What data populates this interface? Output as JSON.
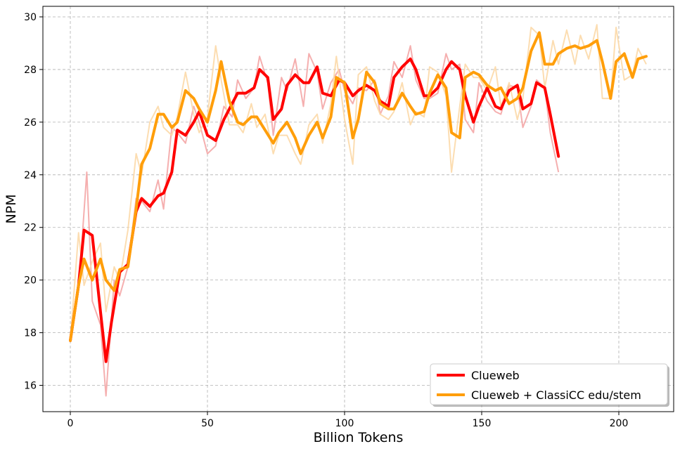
{
  "chart_data": {
    "type": "line",
    "xlabel": "Billion Tokens",
    "ylabel": "NPM",
    "xlim": [
      -10,
      220
    ],
    "ylim": [
      15,
      30.4
    ],
    "x_ticks": [
      0,
      50,
      100,
      150,
      200
    ],
    "y_ticks": [
      16,
      18,
      20,
      22,
      24,
      26,
      28,
      30
    ],
    "grid": true,
    "legend_position": "lower-right",
    "series": [
      {
        "name": "Clueweb",
        "color": "#ff0000",
        "raw_color": "#f4a6a6",
        "smoothed": [
          [
            0,
            17.7
          ],
          [
            3,
            19.8
          ],
          [
            5,
            21.9
          ],
          [
            8,
            21.7
          ],
          [
            11,
            18.8
          ],
          [
            13,
            16.9
          ],
          [
            15,
            18.4
          ],
          [
            18,
            20.3
          ],
          [
            21,
            20.6
          ],
          [
            24,
            22.6
          ],
          [
            26,
            23.1
          ],
          [
            29,
            22.8
          ],
          [
            32,
            23.2
          ],
          [
            34,
            23.3
          ],
          [
            37,
            24.1
          ],
          [
            39,
            25.7
          ],
          [
            42,
            25.5
          ],
          [
            45,
            26.0
          ],
          [
            47,
            26.4
          ],
          [
            50,
            25.5
          ],
          [
            53,
            25.3
          ],
          [
            56,
            26.1
          ],
          [
            59,
            26.7
          ],
          [
            61,
            27.1
          ],
          [
            64,
            27.1
          ],
          [
            67,
            27.3
          ],
          [
            69,
            28.0
          ],
          [
            72,
            27.7
          ],
          [
            74,
            26.1
          ],
          [
            77,
            26.5
          ],
          [
            79,
            27.4
          ],
          [
            82,
            27.8
          ],
          [
            85,
            27.5
          ],
          [
            87,
            27.5
          ],
          [
            90,
            28.1
          ],
          [
            92,
            27.1
          ],
          [
            95,
            27.0
          ],
          [
            98,
            27.6
          ],
          [
            100,
            27.5
          ],
          [
            103,
            27.0
          ],
          [
            105,
            27.2
          ],
          [
            108,
            27.4
          ],
          [
            111,
            27.2
          ],
          [
            113,
            26.8
          ],
          [
            116,
            26.6
          ],
          [
            118,
            27.7
          ],
          [
            121,
            28.1
          ],
          [
            124,
            28.4
          ],
          [
            126,
            28.0
          ],
          [
            129,
            27.0
          ],
          [
            131,
            27.0
          ],
          [
            134,
            27.3
          ],
          [
            137,
            28.0
          ],
          [
            139,
            28.3
          ],
          [
            142,
            28.0
          ],
          [
            144,
            27.0
          ],
          [
            147,
            26.0
          ],
          [
            149,
            26.6
          ],
          [
            152,
            27.3
          ],
          [
            155,
            26.6
          ],
          [
            157,
            26.5
          ],
          [
            160,
            27.2
          ],
          [
            163,
            27.4
          ],
          [
            165,
            26.5
          ],
          [
            168,
            26.7
          ],
          [
            170,
            27.5
          ],
          [
            173,
            27.3
          ],
          [
            175,
            26.3
          ],
          [
            178,
            24.7
          ]
        ],
        "raw": [
          [
            0,
            17.7
          ],
          [
            3,
            19.6
          ],
          [
            6,
            24.1
          ],
          [
            8,
            19.2
          ],
          [
            11,
            18.3
          ],
          [
            13,
            15.6
          ],
          [
            16,
            20.0
          ],
          [
            18,
            19.4
          ],
          [
            21,
            20.5
          ],
          [
            24,
            23.1
          ],
          [
            26,
            23.0
          ],
          [
            29,
            22.6
          ],
          [
            32,
            23.8
          ],
          [
            34,
            22.7
          ],
          [
            37,
            25.8
          ],
          [
            39,
            25.6
          ],
          [
            42,
            25.2
          ],
          [
            45,
            26.6
          ],
          [
            47,
            26.0
          ],
          [
            50,
            24.8
          ],
          [
            53,
            25.1
          ],
          [
            56,
            26.6
          ],
          [
            59,
            26.2
          ],
          [
            61,
            27.6
          ],
          [
            64,
            26.9
          ],
          [
            67,
            27.3
          ],
          [
            69,
            28.5
          ],
          [
            72,
            27.5
          ],
          [
            74,
            25.5
          ],
          [
            77,
            27.7
          ],
          [
            79,
            27.2
          ],
          [
            82,
            28.4
          ],
          [
            85,
            26.6
          ],
          [
            87,
            28.6
          ],
          [
            90,
            27.9
          ],
          [
            92,
            26.5
          ],
          [
            95,
            27.5
          ],
          [
            98,
            28.0
          ],
          [
            100,
            27.2
          ],
          [
            103,
            26.7
          ],
          [
            105,
            27.3
          ],
          [
            108,
            27.2
          ],
          [
            111,
            27.6
          ],
          [
            113,
            26.3
          ],
          [
            116,
            27.0
          ],
          [
            118,
            28.3
          ],
          [
            121,
            27.7
          ],
          [
            124,
            28.9
          ],
          [
            126,
            27.6
          ],
          [
            129,
            26.9
          ],
          [
            131,
            26.9
          ],
          [
            134,
            27.1
          ],
          [
            137,
            28.6
          ],
          [
            139,
            28.0
          ],
          [
            142,
            28.2
          ],
          [
            144,
            26.1
          ],
          [
            147,
            25.6
          ],
          [
            149,
            27.5
          ],
          [
            152,
            26.8
          ],
          [
            155,
            26.4
          ],
          [
            157,
            26.3
          ],
          [
            160,
            27.4
          ],
          [
            163,
            27.3
          ],
          [
            165,
            25.8
          ],
          [
            168,
            26.6
          ],
          [
            170,
            27.6
          ],
          [
            173,
            27.3
          ],
          [
            175,
            25.6
          ],
          [
            178,
            24.1
          ]
        ]
      },
      {
        "name": "Clueweb + ClassiCC edu/stem",
        "color": "#ff9e0a",
        "raw_color": "#fcd9a8",
        "smoothed": [
          [
            0,
            17.7
          ],
          [
            3,
            19.8
          ],
          [
            5,
            20.8
          ],
          [
            8,
            20.0
          ],
          [
            11,
            20.8
          ],
          [
            13,
            20.0
          ],
          [
            16,
            19.6
          ],
          [
            18,
            20.4
          ],
          [
            21,
            20.5
          ],
          [
            24,
            22.7
          ],
          [
            26,
            24.4
          ],
          [
            29,
            25.0
          ],
          [
            32,
            26.3
          ],
          [
            34,
            26.3
          ],
          [
            37,
            25.8
          ],
          [
            39,
            26.0
          ],
          [
            42,
            27.2
          ],
          [
            45,
            26.9
          ],
          [
            47,
            26.5
          ],
          [
            50,
            26.0
          ],
          [
            53,
            27.2
          ],
          [
            55,
            28.3
          ],
          [
            58,
            26.8
          ],
          [
            61,
            26.0
          ],
          [
            63,
            25.9
          ],
          [
            66,
            26.2
          ],
          [
            68,
            26.2
          ],
          [
            71,
            25.7
          ],
          [
            74,
            25.2
          ],
          [
            76,
            25.6
          ],
          [
            79,
            26.0
          ],
          [
            82,
            25.4
          ],
          [
            84,
            24.8
          ],
          [
            87,
            25.5
          ],
          [
            90,
            26.0
          ],
          [
            92,
            25.4
          ],
          [
            95,
            26.2
          ],
          [
            97,
            27.7
          ],
          [
            100,
            27.5
          ],
          [
            103,
            25.4
          ],
          [
            105,
            26.1
          ],
          [
            108,
            27.9
          ],
          [
            111,
            27.5
          ],
          [
            113,
            26.7
          ],
          [
            116,
            26.5
          ],
          [
            118,
            26.5
          ],
          [
            121,
            27.1
          ],
          [
            124,
            26.6
          ],
          [
            126,
            26.3
          ],
          [
            129,
            26.4
          ],
          [
            131,
            27.1
          ],
          [
            134,
            27.8
          ],
          [
            137,
            27.3
          ],
          [
            139,
            25.6
          ],
          [
            142,
            25.4
          ],
          [
            144,
            27.7
          ],
          [
            147,
            27.9
          ],
          [
            149,
            27.8
          ],
          [
            152,
            27.4
          ],
          [
            155,
            27.2
          ],
          [
            157,
            27.3
          ],
          [
            160,
            26.7
          ],
          [
            163,
            26.9
          ],
          [
            165,
            27.3
          ],
          [
            168,
            28.7
          ],
          [
            171,
            29.4
          ],
          [
            173,
            28.2
          ],
          [
            176,
            28.2
          ],
          [
            178,
            28.6
          ],
          [
            181,
            28.8
          ],
          [
            184,
            28.9
          ],
          [
            186,
            28.8
          ],
          [
            189,
            28.9
          ],
          [
            192,
            29.1
          ],
          [
            194,
            28.3
          ],
          [
            197,
            26.9
          ],
          [
            199,
            28.3
          ],
          [
            202,
            28.6
          ],
          [
            205,
            27.7
          ],
          [
            207,
            28.4
          ],
          [
            210,
            28.5
          ]
        ],
        "raw": [
          [
            0,
            17.7
          ],
          [
            3,
            21.8
          ],
          [
            5,
            19.8
          ],
          [
            8,
            20.7
          ],
          [
            11,
            21.4
          ],
          [
            13,
            18.8
          ],
          [
            16,
            20.5
          ],
          [
            18,
            20.0
          ],
          [
            21,
            21.9
          ],
          [
            24,
            24.8
          ],
          [
            26,
            24.0
          ],
          [
            29,
            26.0
          ],
          [
            32,
            26.6
          ],
          [
            34,
            25.8
          ],
          [
            37,
            25.5
          ],
          [
            39,
            26.2
          ],
          [
            42,
            27.9
          ],
          [
            45,
            26.3
          ],
          [
            47,
            25.6
          ],
          [
            50,
            26.2
          ],
          [
            53,
            28.9
          ],
          [
            55,
            27.6
          ],
          [
            58,
            25.9
          ],
          [
            61,
            25.9
          ],
          [
            63,
            25.6
          ],
          [
            66,
            26.7
          ],
          [
            68,
            25.8
          ],
          [
            71,
            26.3
          ],
          [
            74,
            24.8
          ],
          [
            76,
            25.5
          ],
          [
            79,
            25.5
          ],
          [
            82,
            24.8
          ],
          [
            84,
            24.4
          ],
          [
            87,
            25.9
          ],
          [
            90,
            26.3
          ],
          [
            92,
            25.2
          ],
          [
            95,
            26.7
          ],
          [
            97,
            28.5
          ],
          [
            100,
            26.1
          ],
          [
            103,
            24.4
          ],
          [
            105,
            27.8
          ],
          [
            108,
            28.1
          ],
          [
            111,
            26.8
          ],
          [
            113,
            26.3
          ],
          [
            116,
            26.1
          ],
          [
            118,
            26.4
          ],
          [
            121,
            27.5
          ],
          [
            124,
            25.9
          ],
          [
            126,
            26.4
          ],
          [
            129,
            26.2
          ],
          [
            131,
            28.1
          ],
          [
            134,
            27.9
          ],
          [
            137,
            27.0
          ],
          [
            139,
            24.1
          ],
          [
            142,
            26.6
          ],
          [
            144,
            28.2
          ],
          [
            147,
            27.7
          ],
          [
            149,
            27.7
          ],
          [
            152,
            27.2
          ],
          [
            155,
            28.1
          ],
          [
            157,
            26.6
          ],
          [
            160,
            27.5
          ],
          [
            163,
            26.1
          ],
          [
            165,
            26.9
          ],
          [
            168,
            29.6
          ],
          [
            171,
            29.3
          ],
          [
            173,
            27.3
          ],
          [
            176,
            29.1
          ],
          [
            178,
            28.2
          ],
          [
            181,
            29.5
          ],
          [
            184,
            28.2
          ],
          [
            186,
            29.3
          ],
          [
            189,
            28.4
          ],
          [
            192,
            29.7
          ],
          [
            194,
            26.9
          ],
          [
            197,
            26.9
          ],
          [
            199,
            29.6
          ],
          [
            202,
            27.6
          ],
          [
            205,
            27.8
          ],
          [
            207,
            28.8
          ],
          [
            210,
            28.2
          ]
        ]
      }
    ]
  }
}
